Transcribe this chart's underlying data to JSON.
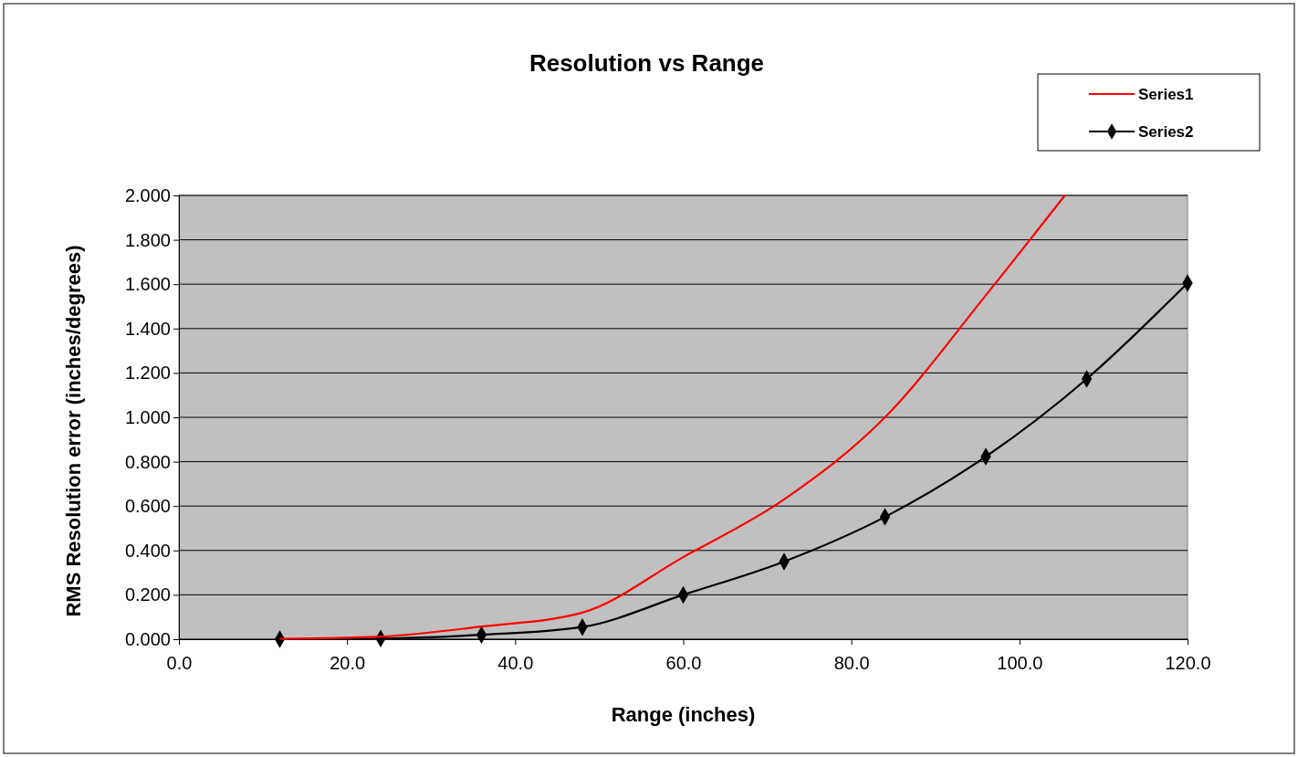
{
  "chart_data": {
    "type": "line",
    "title": "Resolution vs Range",
    "xlabel": "Range (inches)",
    "ylabel": "RMS Resolution error (inches/degrees)",
    "x": [
      12,
      24,
      36,
      48,
      60,
      72,
      84,
      96,
      108,
      120
    ],
    "series": [
      {
        "name": "Series1",
        "color": "#ff0000",
        "marker": "none",
        "x": [
          12,
          24,
          36,
          48,
          60,
          72,
          84,
          96,
          105.4
        ],
        "values": [
          0.002,
          0.012,
          0.057,
          0.12,
          0.37,
          0.63,
          1.0,
          1.55,
          2.0
        ]
      },
      {
        "name": "Series2",
        "color": "#000000",
        "marker": "diamond",
        "values": [
          0.0,
          0.003,
          0.02,
          0.055,
          0.2,
          0.35,
          0.551,
          0.823,
          1.173,
          1.605
        ]
      }
    ],
    "xlim": [
      0,
      120
    ],
    "xticks": [
      {
        "value": 0,
        "label": "0.0"
      },
      {
        "value": 20,
        "label": "20.0"
      },
      {
        "value": 40,
        "label": "40.0"
      },
      {
        "value": 60,
        "label": "60.0"
      },
      {
        "value": 80,
        "label": "80.0"
      },
      {
        "value": 100,
        "label": "100.0"
      },
      {
        "value": 120,
        "label": "120.0"
      }
    ],
    "ylim": [
      0,
      2
    ],
    "yticks": [
      {
        "value": 0,
        "label": "0.000"
      },
      {
        "value": 0.2,
        "label": "0.200"
      },
      {
        "value": 0.4,
        "label": "0.400"
      },
      {
        "value": 0.6,
        "label": "0.600"
      },
      {
        "value": 0.8,
        "label": "0.800"
      },
      {
        "value": 1,
        "label": "1.000"
      },
      {
        "value": 1.2,
        "label": "1.200"
      },
      {
        "value": 1.4,
        "label": "1.400"
      },
      {
        "value": 1.6,
        "label": "1.600"
      },
      {
        "value": 1.8,
        "label": "1.800"
      },
      {
        "value": 2,
        "label": "2.000"
      }
    ],
    "grid": "y",
    "legend": "top right",
    "line_style": "solid"
  }
}
